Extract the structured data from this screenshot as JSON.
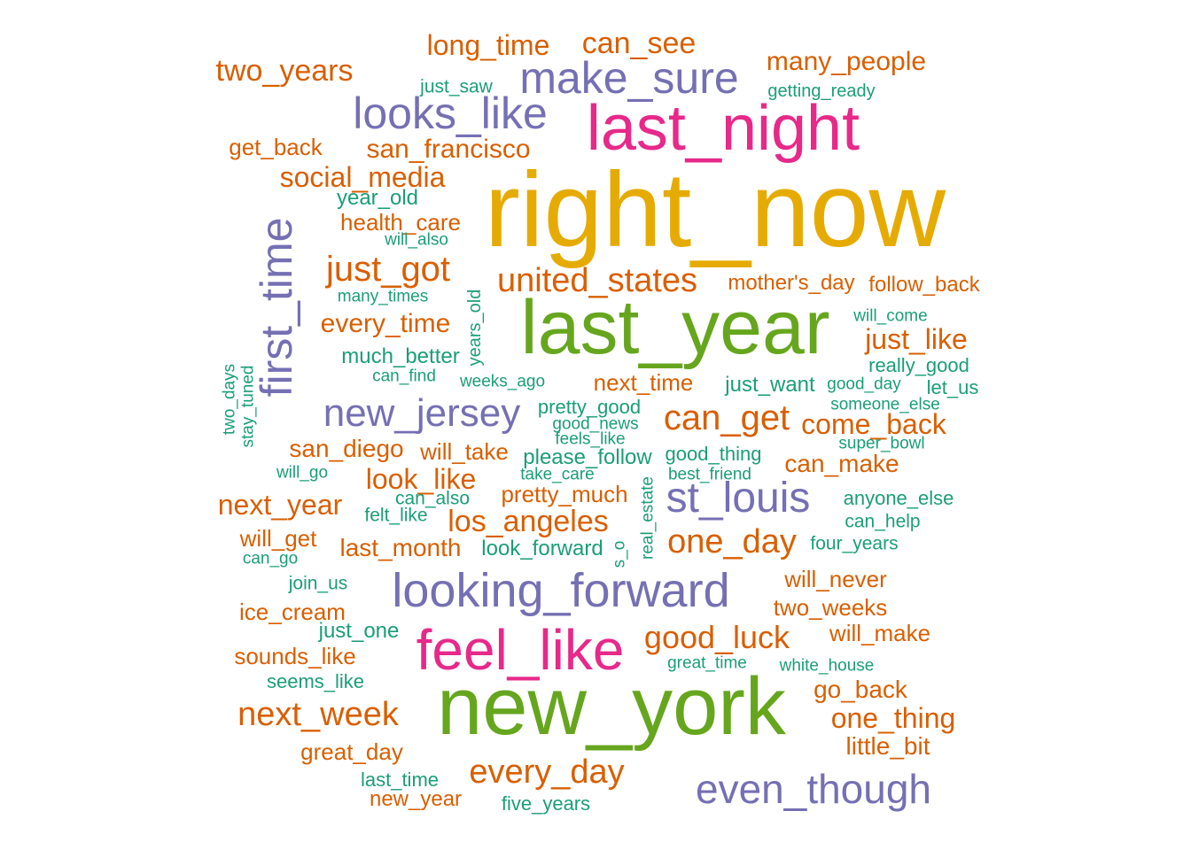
{
  "colors": {
    "gold": "#E6AB02",
    "pink": "#E7298A",
    "green": "#66A61E",
    "purple": "#7570B3",
    "orange": "#D95F02",
    "teal": "#1B9E77"
  },
  "words": [
    {
      "text": "right_now",
      "color": "gold",
      "freq": 10
    },
    {
      "text": "new_york",
      "color": "green",
      "freq": 9
    },
    {
      "text": "last_year",
      "color": "green",
      "freq": 9
    },
    {
      "text": "last_night",
      "color": "pink",
      "freq": 8
    },
    {
      "text": "feel_like",
      "color": "pink",
      "freq": 8
    },
    {
      "text": "looking_forward",
      "color": "purple",
      "freq": 7
    },
    {
      "text": "make_sure",
      "color": "purple",
      "freq": 7
    },
    {
      "text": "looks_like",
      "color": "purple",
      "freq": 7
    },
    {
      "text": "first_time",
      "color": "purple",
      "freq": 7
    },
    {
      "text": "even_though",
      "color": "purple",
      "freq": 7
    },
    {
      "text": "new_jersey",
      "color": "purple",
      "freq": 7
    },
    {
      "text": "st_louis",
      "color": "purple",
      "freq": 7
    },
    {
      "text": "can_get",
      "color": "orange",
      "freq": 6
    },
    {
      "text": "united_states",
      "color": "orange",
      "freq": 6
    },
    {
      "text": "just_got",
      "color": "orange",
      "freq": 6
    },
    {
      "text": "next_week",
      "color": "orange",
      "freq": 6
    },
    {
      "text": "every_day",
      "color": "orange",
      "freq": 6
    },
    {
      "text": "good_luck",
      "color": "orange",
      "freq": 6
    },
    {
      "text": "one_day",
      "color": "orange",
      "freq": 6
    },
    {
      "text": "los_angeles",
      "color": "orange",
      "freq": 5
    },
    {
      "text": "can_see",
      "color": "orange",
      "freq": 5
    },
    {
      "text": "long_time",
      "color": "orange",
      "freq": 5
    },
    {
      "text": "two_years",
      "color": "orange",
      "freq": 5
    },
    {
      "text": "next_year",
      "color": "orange",
      "freq": 5
    },
    {
      "text": "look_like",
      "color": "orange",
      "freq": 5
    },
    {
      "text": "social_media",
      "color": "orange",
      "freq": 5
    },
    {
      "text": "san_francisco",
      "color": "orange",
      "freq": 5
    },
    {
      "text": "many_people",
      "color": "orange",
      "freq": 5
    },
    {
      "text": "just_like",
      "color": "orange",
      "freq": 5
    },
    {
      "text": "come_back",
      "color": "orange",
      "freq": 5
    },
    {
      "text": "one_thing",
      "color": "orange",
      "freq": 5
    },
    {
      "text": "every_time",
      "color": "orange",
      "freq": 5
    },
    {
      "text": "can_make",
      "color": "orange",
      "freq": 4
    },
    {
      "text": "go_back",
      "color": "orange",
      "freq": 4
    },
    {
      "text": "will_get",
      "color": "orange",
      "freq": 4
    },
    {
      "text": "last_month",
      "color": "orange",
      "freq": 4
    },
    {
      "text": "san_diego",
      "color": "orange",
      "freq": 4
    },
    {
      "text": "sounds_like",
      "color": "orange",
      "freq": 4
    },
    {
      "text": "little_bit",
      "color": "orange",
      "freq": 4
    },
    {
      "text": "next_time",
      "color": "orange",
      "freq": 4
    },
    {
      "text": "will_never",
      "color": "orange",
      "freq": 4
    },
    {
      "text": "two_weeks",
      "color": "orange",
      "freq": 4
    },
    {
      "text": "will_make",
      "color": "orange",
      "freq": 4
    },
    {
      "text": "get_back",
      "color": "orange",
      "freq": 4
    },
    {
      "text": "health_care",
      "color": "orange",
      "freq": 4
    },
    {
      "text": "great_day",
      "color": "orange",
      "freq": 4
    },
    {
      "text": "will_take",
      "color": "orange",
      "freq": 4
    },
    {
      "text": "pretty_much",
      "color": "orange",
      "freq": 4
    },
    {
      "text": "ice_cream",
      "color": "orange",
      "freq": 4
    },
    {
      "text": "follow_back",
      "color": "orange",
      "freq": 4
    },
    {
      "text": "mother's_day",
      "color": "orange",
      "freq": 4
    },
    {
      "text": "new_year",
      "color": "orange",
      "freq": 4
    },
    {
      "text": "please_follow",
      "color": "teal",
      "freq": 3
    },
    {
      "text": "just_want",
      "color": "teal",
      "freq": 3
    },
    {
      "text": "much_better",
      "color": "teal",
      "freq": 3
    },
    {
      "text": "look_forward",
      "color": "teal",
      "freq": 3
    },
    {
      "text": "pretty_good",
      "color": "teal",
      "freq": 3
    },
    {
      "text": "year_old",
      "color": "teal",
      "freq": 3
    },
    {
      "text": "just_one",
      "color": "teal",
      "freq": 3
    },
    {
      "text": "anyone_else",
      "color": "teal",
      "freq": 3
    },
    {
      "text": "seems_like",
      "color": "teal",
      "freq": 3
    },
    {
      "text": "last_time",
      "color": "teal",
      "freq": 3
    },
    {
      "text": "five_years",
      "color": "teal",
      "freq": 3
    },
    {
      "text": "really_good",
      "color": "teal",
      "freq": 3
    },
    {
      "text": "let_us",
      "color": "teal",
      "freq": 3
    },
    {
      "text": "good_thing",
      "color": "teal",
      "freq": 3
    },
    {
      "text": "four_years",
      "color": "teal",
      "freq": 3
    },
    {
      "text": "join_us",
      "color": "teal",
      "freq": 3
    },
    {
      "text": "can_also",
      "color": "teal",
      "freq": 3
    },
    {
      "text": "can_help",
      "color": "teal",
      "freq": 3
    },
    {
      "text": "felt_like",
      "color": "teal",
      "freq": 3
    },
    {
      "text": "just_saw",
      "color": "teal",
      "freq": 3
    },
    {
      "text": "years_old",
      "color": "teal",
      "freq": 3
    },
    {
      "text": "getting_ready",
      "color": "teal",
      "freq": 2
    },
    {
      "text": "will_also",
      "color": "teal",
      "freq": 2
    },
    {
      "text": "many_times",
      "color": "teal",
      "freq": 2
    },
    {
      "text": "will_come",
      "color": "teal",
      "freq": 2
    },
    {
      "text": "can_find",
      "color": "teal",
      "freq": 2
    },
    {
      "text": "weeks_ago",
      "color": "teal",
      "freq": 2
    },
    {
      "text": "good_day",
      "color": "teal",
      "freq": 2
    },
    {
      "text": "someone_else",
      "color": "teal",
      "freq": 2
    },
    {
      "text": "good_news",
      "color": "teal",
      "freq": 2
    },
    {
      "text": "feels_like",
      "color": "teal",
      "freq": 2
    },
    {
      "text": "super_bowl",
      "color": "teal",
      "freq": 2
    },
    {
      "text": "will_go",
      "color": "teal",
      "freq": 2
    },
    {
      "text": "take_care",
      "color": "teal",
      "freq": 2
    },
    {
      "text": "best_friend",
      "color": "teal",
      "freq": 2
    },
    {
      "text": "can_go",
      "color": "teal",
      "freq": 2
    },
    {
      "text": "great_time",
      "color": "teal",
      "freq": 2
    },
    {
      "text": "white_house",
      "color": "teal",
      "freq": 2
    },
    {
      "text": "two_days",
      "color": "teal",
      "freq": 2
    },
    {
      "text": "stay_tuned",
      "color": "teal",
      "freq": 2
    },
    {
      "text": "real_estate",
      "color": "teal",
      "freq": 2
    },
    {
      "text": "s_o",
      "color": "teal",
      "freq": 2
    }
  ]
}
